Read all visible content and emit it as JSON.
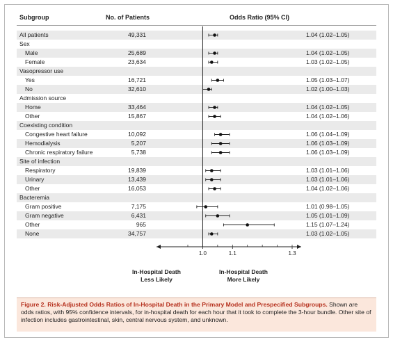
{
  "headers": {
    "subgroup": "Subgroup",
    "patients": "No. of Patients",
    "or": "Odds Ratio (95% CI)"
  },
  "rows": [
    {
      "label": "All patients",
      "n": "49,331",
      "or_text": "1.04 (1.02–1.05)",
      "est": 1.04,
      "lo": 1.02,
      "hi": 1.05,
      "indent": false,
      "header": false
    },
    {
      "label": "Sex",
      "n": "",
      "or_text": "",
      "indent": false,
      "header": true
    },
    {
      "label": "Male",
      "n": "25,689",
      "or_text": "1.04 (1.02–1.05)",
      "est": 1.04,
      "lo": 1.02,
      "hi": 1.05,
      "indent": true,
      "header": false
    },
    {
      "label": "Female",
      "n": "23,634",
      "or_text": "1.03 (1.02–1.05)",
      "est": 1.03,
      "lo": 1.02,
      "hi": 1.05,
      "indent": true,
      "header": false
    },
    {
      "label": "Vasopressor use",
      "n": "",
      "or_text": "",
      "indent": false,
      "header": true
    },
    {
      "label": "Yes",
      "n": "16,721",
      "or_text": "1.05 (1.03–1.07)",
      "est": 1.05,
      "lo": 1.03,
      "hi": 1.07,
      "indent": true,
      "header": false
    },
    {
      "label": "No",
      "n": "32,610",
      "or_text": "1.02 (1.00–1.03)",
      "est": 1.02,
      "lo": 1.0,
      "hi": 1.03,
      "indent": true,
      "header": false
    },
    {
      "label": "Admission source",
      "n": "",
      "or_text": "",
      "indent": false,
      "header": true
    },
    {
      "label": "Home",
      "n": "33,464",
      "or_text": "1.04 (1.02–1.05)",
      "est": 1.04,
      "lo": 1.02,
      "hi": 1.05,
      "indent": true,
      "header": false
    },
    {
      "label": "Other",
      "n": "15,867",
      "or_text": "1.04 (1.02–1.06)",
      "est": 1.04,
      "lo": 1.02,
      "hi": 1.06,
      "indent": true,
      "header": false
    },
    {
      "label": "Coexisting condition",
      "n": "",
      "or_text": "",
      "indent": false,
      "header": true
    },
    {
      "label": "Congestive heart failure",
      "n": "10,092",
      "or_text": "1.06 (1.04–1.09)",
      "est": 1.06,
      "lo": 1.04,
      "hi": 1.09,
      "indent": true,
      "header": false
    },
    {
      "label": "Hemodialysis",
      "n": "5,207",
      "or_text": "1.06 (1.03–1.09)",
      "est": 1.06,
      "lo": 1.03,
      "hi": 1.09,
      "indent": true,
      "header": false
    },
    {
      "label": "Chronic respiratory failure",
      "n": "5,738",
      "or_text": "1.06 (1.03–1.09)",
      "est": 1.06,
      "lo": 1.03,
      "hi": 1.09,
      "indent": true,
      "header": false
    },
    {
      "label": "Site of infection",
      "n": "",
      "or_text": "",
      "indent": false,
      "header": true
    },
    {
      "label": "Respiratory",
      "n": "19,839",
      "or_text": "1.03 (1.01–1.06)",
      "est": 1.03,
      "lo": 1.01,
      "hi": 1.06,
      "indent": true,
      "header": false
    },
    {
      "label": "Urinary",
      "n": "13,439",
      "or_text": "1.03 (1.01–1.06)",
      "est": 1.03,
      "lo": 1.01,
      "hi": 1.06,
      "indent": true,
      "header": false
    },
    {
      "label": "Other",
      "n": "16,053",
      "or_text": "1.04 (1.02–1.06)",
      "est": 1.04,
      "lo": 1.02,
      "hi": 1.06,
      "indent": true,
      "header": false
    },
    {
      "label": "Bacteremia",
      "n": "",
      "or_text": "",
      "indent": false,
      "header": true
    },
    {
      "label": "Gram positive",
      "n": "7,175",
      "or_text": "1.01 (0.98–1.05)",
      "est": 1.01,
      "lo": 0.98,
      "hi": 1.05,
      "indent": true,
      "header": false
    },
    {
      "label": "Gram negative",
      "n": "6,431",
      "or_text": "1.05 (1.01–1.09)",
      "est": 1.05,
      "lo": 1.01,
      "hi": 1.09,
      "indent": true,
      "header": false
    },
    {
      "label": "Other",
      "n": "965",
      "or_text": "1.15 (1.07–1.24)",
      "est": 1.15,
      "lo": 1.07,
      "hi": 1.24,
      "indent": true,
      "header": false
    },
    {
      "label": "None",
      "n": "34,757",
      "or_text": "1.03 (1.02–1.05)",
      "est": 1.03,
      "lo": 1.02,
      "hi": 1.05,
      "indent": true,
      "header": false
    }
  ],
  "axis": {
    "ticks": [
      "1.0",
      "1.1",
      "1.3"
    ],
    "xmin": 0.95,
    "xmax": 1.3,
    "ref": 1.0
  },
  "direction_labels": {
    "left": "In-Hospital Death\nLess Likely",
    "right": "In-Hospital Death\nMore Likely"
  },
  "caption": {
    "title": "Figure 2. Risk-Adjusted Odds Ratios of In-Hospital Death in the Primary Model and Prespecified Subgroups.",
    "body": "Shown are odds ratios, with 95% confidence intervals, for in-hospital death for each hour that it took to complete the 3-hour bundle. Other site of infection includes gastrointestinal, skin, central nervous system, and unknown."
  },
  "colors": {
    "caption_bg": "#fbe7dc",
    "caption_title": "#b5301d",
    "stripe": "#eaeaea"
  },
  "chart_data": {
    "type": "scatter",
    "title": "",
    "xlabel": "",
    "ylabel": "",
    "x_scale": "odds ratio",
    "ref_line": 1.0,
    "categories": [
      "All patients",
      "Male",
      "Female",
      "Vasopressor use: Yes",
      "Vasopressor use: No",
      "Admission source: Home",
      "Admission source: Other",
      "Congestive heart failure",
      "Hemodialysis",
      "Chronic respiratory failure",
      "Respiratory",
      "Urinary",
      "Site of infection: Other",
      "Gram positive",
      "Gram negative",
      "Bacteremia: Other",
      "None"
    ],
    "series": [
      {
        "values": [
          1.04,
          1.04,
          1.03,
          1.05,
          1.02,
          1.04,
          1.04,
          1.06,
          1.06,
          1.06,
          1.03,
          1.03,
          1.04,
          1.01,
          1.05,
          1.15,
          1.03
        ],
        "lower": [
          1.02,
          1.02,
          1.02,
          1.03,
          1.0,
          1.02,
          1.02,
          1.04,
          1.03,
          1.03,
          1.01,
          1.01,
          1.02,
          0.98,
          1.01,
          1.07,
          1.02
        ],
        "upper": [
          1.05,
          1.05,
          1.05,
          1.07,
          1.03,
          1.05,
          1.06,
          1.09,
          1.09,
          1.09,
          1.06,
          1.06,
          1.06,
          1.05,
          1.09,
          1.24,
          1.05
        ]
      }
    ],
    "xticks": [
      "1.0",
      "1.1",
      "1.3"
    ]
  }
}
